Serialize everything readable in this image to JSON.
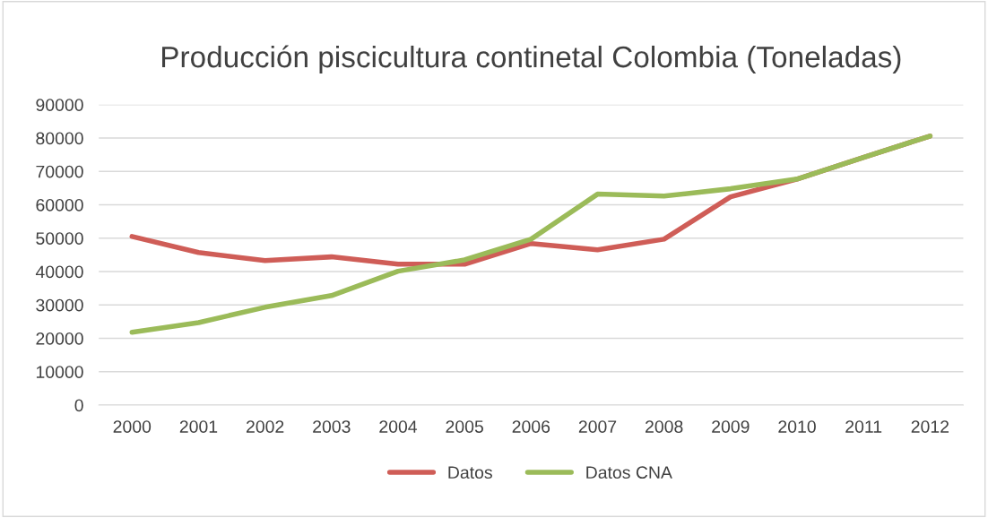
{
  "chart_data": {
    "type": "line",
    "title": "Producción piscicultura continetal Colombia (Toneladas)",
    "categories": [
      "2000",
      "2001",
      "2002",
      "2003",
      "2004",
      "2005",
      "2006",
      "2007",
      "2008",
      "2009",
      "2010",
      "2011",
      "2012"
    ],
    "series": [
      {
        "name": "Datos",
        "color": "#cf5d57",
        "values": [
          50500,
          45700,
          43300,
          44400,
          42200,
          42200,
          48400,
          46500,
          49700,
          62400,
          67700,
          74200,
          80600
        ]
      },
      {
        "name": "Datos CNA",
        "color": "#9bbb59",
        "values": [
          21800,
          24700,
          29300,
          32800,
          40100,
          43500,
          49700,
          63200,
          62600,
          64800,
          67700,
          74200,
          80600
        ]
      }
    ],
    "ylim": [
      0,
      90000
    ],
    "yticks": [
      0,
      10000,
      20000,
      30000,
      40000,
      50000,
      60000,
      70000,
      80000,
      90000
    ],
    "grid": "y",
    "legend": "bottom",
    "marker": "none",
    "line_style": "solid"
  }
}
